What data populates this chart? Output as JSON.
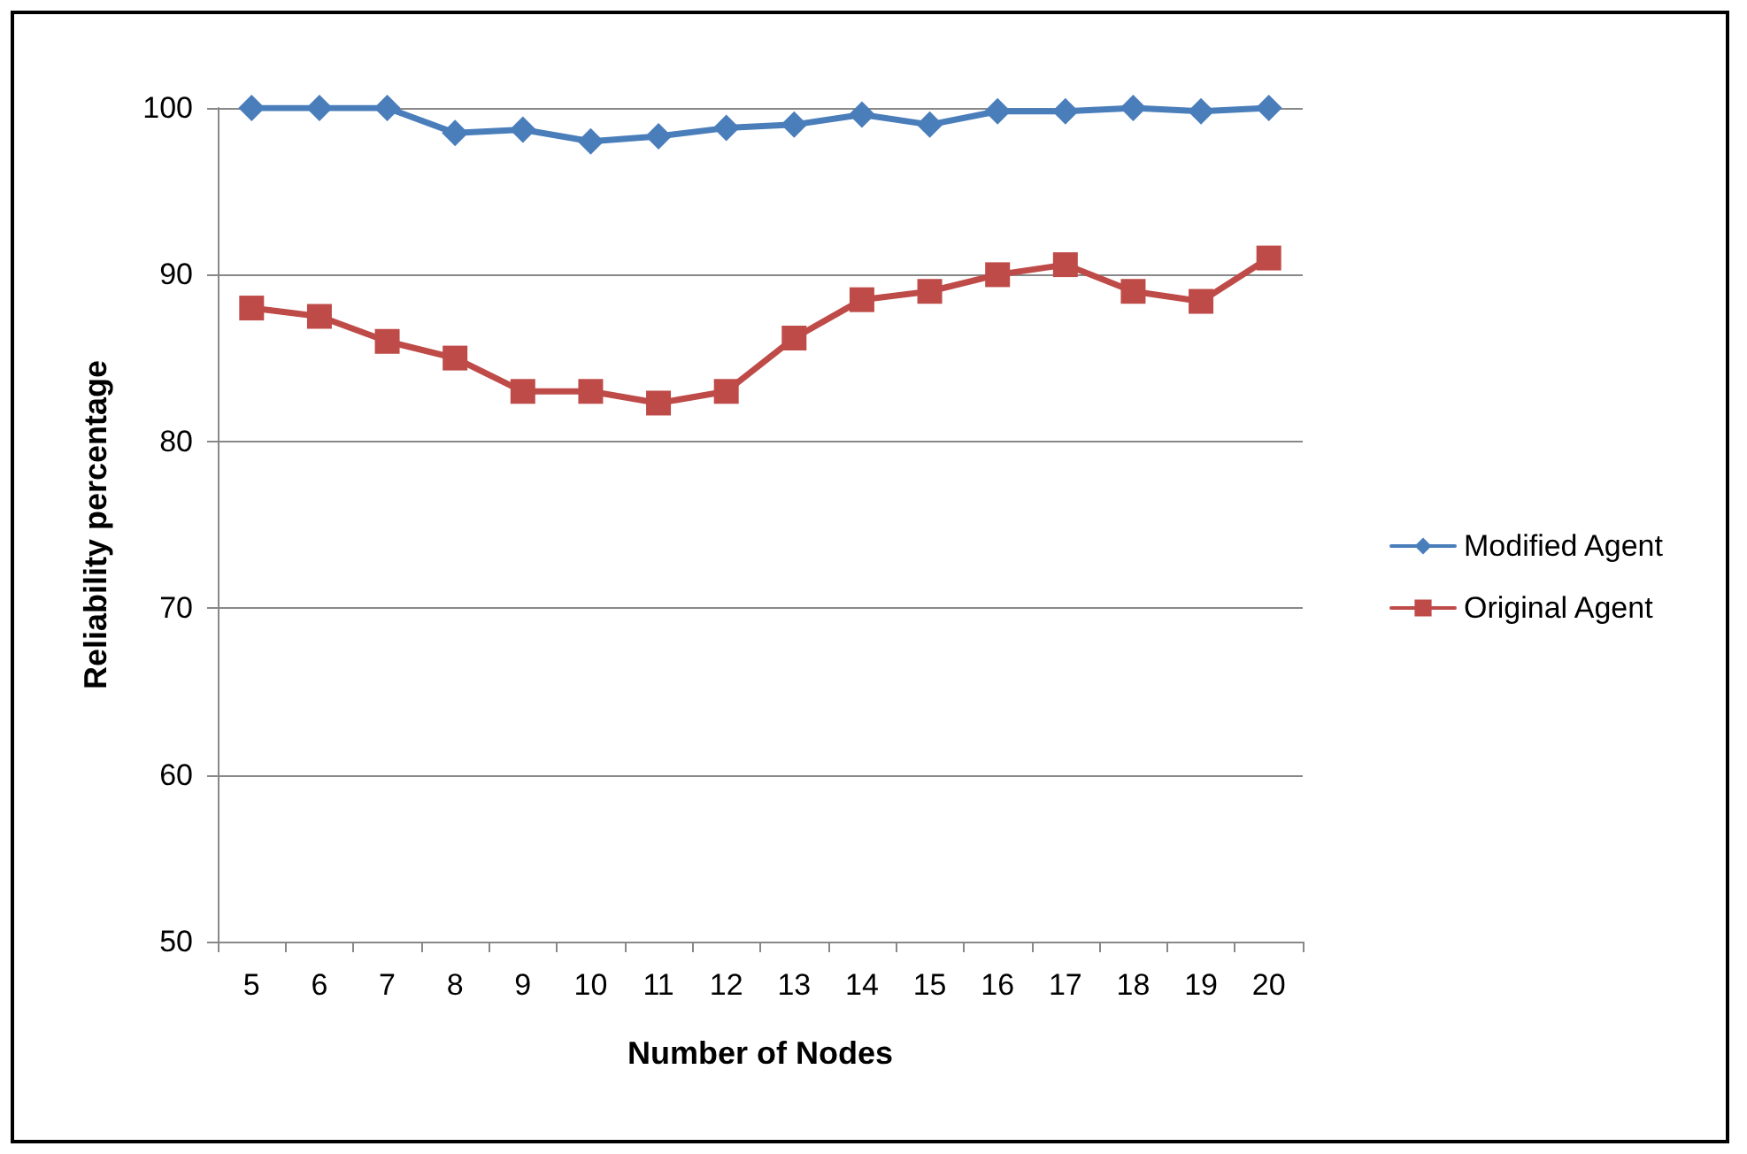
{
  "chart_data": {
    "type": "line",
    "xlabel": "Number of Nodes",
    "ylabel": "Reliability percentage",
    "categories": [
      "5",
      "6",
      "7",
      "8",
      "9",
      "10",
      "11",
      "12",
      "13",
      "14",
      "15",
      "16",
      "17",
      "18",
      "19",
      "20"
    ],
    "series": [
      {
        "name": "Modified Agent",
        "color": "#4a7ebb",
        "marker": "diamond",
        "values": [
          100,
          100,
          100,
          98.5,
          98.7,
          98,
          98.3,
          98.8,
          99,
          99.6,
          99,
          99.8,
          99.8,
          100,
          99.8,
          100
        ]
      },
      {
        "name": "Original Agent",
        "color": "#be4b48",
        "marker": "square",
        "values": [
          88,
          87.5,
          86,
          85,
          83,
          83,
          82.3,
          83,
          86.2,
          88.5,
          89,
          90,
          90.6,
          89,
          88.4,
          91
        ]
      }
    ],
    "ylim": [
      50,
      100
    ],
    "yticks": [
      50,
      60,
      70,
      80,
      90,
      100
    ],
    "grid": "y",
    "legend": "right",
    "line_style": "solid"
  }
}
